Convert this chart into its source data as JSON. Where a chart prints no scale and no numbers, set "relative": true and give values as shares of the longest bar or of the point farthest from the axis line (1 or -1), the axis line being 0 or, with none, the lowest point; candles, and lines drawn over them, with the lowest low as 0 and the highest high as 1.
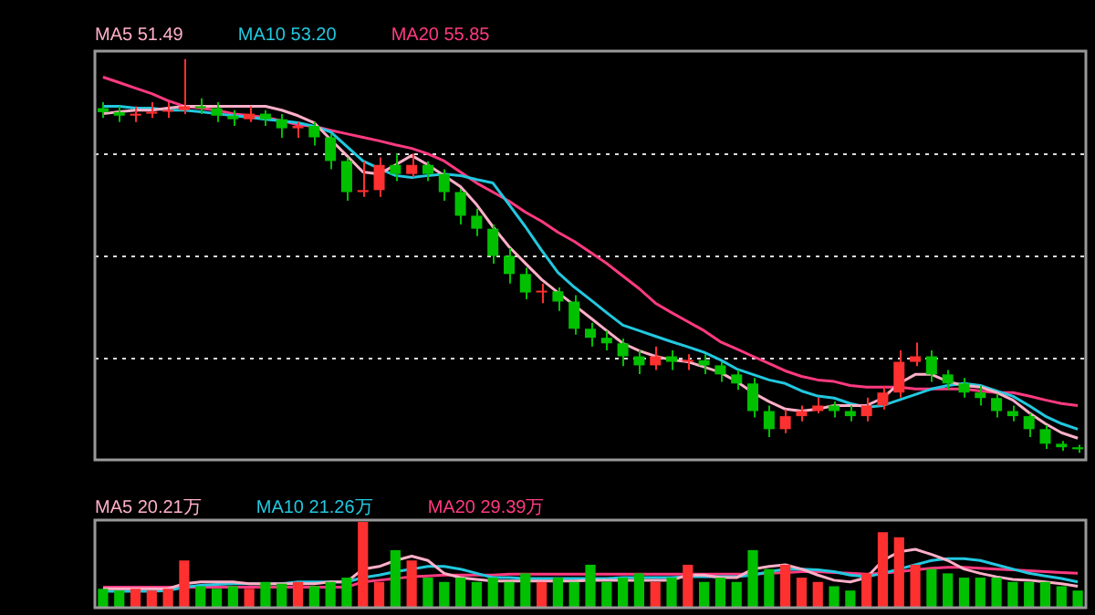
{
  "chart_data": [
    {
      "type": "candlestick",
      "relative": true,
      "grid": "y",
      "legend": "top left",
      "categories": [
        null,
        null,
        null,
        null,
        null,
        null,
        null,
        null,
        null,
        null,
        null,
        null,
        null,
        null,
        null,
        null,
        null,
        null,
        null,
        null,
        null,
        null,
        null,
        null,
        null,
        null,
        null,
        null,
        null,
        null,
        null,
        null,
        null,
        null,
        null,
        null,
        null,
        null,
        null,
        null,
        null,
        null,
        null,
        null,
        null,
        null,
        null,
        null,
        null,
        null,
        null,
        null,
        null,
        null,
        null,
        null,
        null,
        null,
        null,
        null,
        null
      ],
      "ohlc": [
        [
          0.875,
          0.89,
          0.85,
          0.865
        ],
        [
          0.865,
          0.88,
          0.84,
          0.856
        ],
        [
          0.856,
          0.88,
          0.84,
          0.861
        ],
        [
          0.861,
          0.89,
          0.85,
          0.866
        ],
        [
          0.866,
          0.89,
          0.85,
          0.87
        ],
        [
          0.87,
          1.0,
          0.86,
          0.88
        ],
        [
          0.88,
          0.9,
          0.86,
          0.875
        ],
        [
          0.875,
          0.89,
          0.84,
          0.856
        ],
        [
          0.856,
          0.87,
          0.83,
          0.847
        ],
        [
          0.847,
          0.88,
          0.84,
          0.861
        ],
        [
          0.861,
          0.87,
          0.83,
          0.847
        ],
        [
          0.847,
          0.86,
          0.8,
          0.824
        ],
        [
          0.824,
          0.84,
          0.8,
          0.83
        ],
        [
          0.83,
          0.84,
          0.78,
          0.801
        ],
        [
          0.801,
          0.81,
          0.72,
          0.741
        ],
        [
          0.741,
          0.75,
          0.64,
          0.662
        ],
        [
          0.662,
          0.74,
          0.65,
          0.667
        ],
        [
          0.667,
          0.75,
          0.65,
          0.731
        ],
        [
          0.731,
          0.76,
          0.69,
          0.708
        ],
        [
          0.708,
          0.76,
          0.7,
          0.731
        ],
        [
          0.731,
          0.74,
          0.69,
          0.708
        ],
        [
          0.708,
          0.72,
          0.64,
          0.662
        ],
        [
          0.662,
          0.67,
          0.58,
          0.602
        ],
        [
          0.602,
          0.62,
          0.55,
          0.569
        ],
        [
          0.569,
          0.58,
          0.48,
          0.5
        ],
        [
          0.5,
          0.52,
          0.43,
          0.454
        ],
        [
          0.454,
          0.47,
          0.39,
          0.407
        ],
        [
          0.407,
          0.43,
          0.38,
          0.41
        ],
        [
          0.41,
          0.42,
          0.36,
          0.384
        ],
        [
          0.384,
          0.4,
          0.3,
          0.315
        ],
        [
          0.315,
          0.33,
          0.27,
          0.292
        ],
        [
          0.292,
          0.31,
          0.26,
          0.278
        ],
        [
          0.278,
          0.29,
          0.22,
          0.245
        ],
        [
          0.245,
          0.26,
          0.2,
          0.222
        ],
        [
          0.222,
          0.27,
          0.21,
          0.245
        ],
        [
          0.245,
          0.26,
          0.21,
          0.231
        ],
        [
          0.231,
          0.25,
          0.21,
          0.235
        ],
        [
          0.235,
          0.25,
          0.2,
          0.222
        ],
        [
          0.222,
          0.23,
          0.18,
          0.199
        ],
        [
          0.199,
          0.21,
          0.16,
          0.176
        ],
        [
          0.176,
          0.19,
          0.09,
          0.106
        ],
        [
          0.106,
          0.12,
          0.04,
          0.06
        ],
        [
          0.06,
          0.11,
          0.05,
          0.093
        ],
        [
          0.093,
          0.12,
          0.08,
          0.106
        ],
        [
          0.106,
          0.14,
          0.1,
          0.12
        ],
        [
          0.12,
          0.13,
          0.09,
          0.106
        ],
        [
          0.106,
          0.12,
          0.08,
          0.093
        ],
        [
          0.093,
          0.14,
          0.08,
          0.12
        ],
        [
          0.12,
          0.17,
          0.11,
          0.153
        ],
        [
          0.153,
          0.26,
          0.14,
          0.231
        ],
        [
          0.231,
          0.28,
          0.22,
          0.245
        ],
        [
          0.245,
          0.26,
          0.18,
          0.199
        ],
        [
          0.199,
          0.21,
          0.16,
          0.176
        ],
        [
          0.176,
          0.19,
          0.14,
          0.153
        ],
        [
          0.153,
          0.17,
          0.12,
          0.139
        ],
        [
          0.139,
          0.15,
          0.09,
          0.106
        ],
        [
          0.106,
          0.12,
          0.08,
          0.093
        ],
        [
          0.093,
          0.1,
          0.04,
          0.06
        ],
        [
          0.06,
          0.07,
          0.01,
          0.023
        ],
        [
          0.023,
          0.03,
          0.005,
          0.014
        ],
        [
          0.014,
          0.02,
          0,
          0.009
        ]
      ],
      "colors": [
        "#00c000",
        "#00c000",
        "#ff3030",
        "#ff3030",
        "#ff3030",
        "#ff3030",
        "#00c000",
        "#00c000",
        "#00c000",
        "#ff3030",
        "#00c000",
        "#00c000",
        "#ff3030",
        "#00c000",
        "#00c000",
        "#00c000",
        "#ff3030",
        "#ff3030",
        "#00c000",
        "#ff3030",
        "#00c000",
        "#00c000",
        "#00c000",
        "#00c000",
        "#00c000",
        "#00c000",
        "#00c000",
        "#ff3030",
        "#00c000",
        "#00c000",
        "#00c000",
        "#00c000",
        "#00c000",
        "#00c000",
        "#ff3030",
        "#00c000",
        "#ff3030",
        "#00c000",
        "#00c000",
        "#00c000",
        "#00c000",
        "#00c000",
        "#ff3030",
        "#ff3030",
        "#ff3030",
        "#00c000",
        "#00c000",
        "#ff3030",
        "#ff3030",
        "#ff3030",
        "#ff3030",
        "#00c000",
        "#00c000",
        "#00c000",
        "#00c000",
        "#00c000",
        "#00c000",
        "#00c000",
        "#00c000",
        "#00c000",
        "#00c000"
      ],
      "series": [
        {
          "name": "MA5 51.49",
          "type": "line",
          "color": "#ffb0c8",
          "values": [
            0.861,
            0.866,
            0.87,
            0.87,
            0.875,
            0.88,
            0.88,
            0.88,
            0.88,
            0.88,
            0.88,
            0.87,
            0.856,
            0.838,
            0.796,
            0.755,
            0.713,
            0.708,
            0.731,
            0.755,
            0.731,
            0.704,
            0.676,
            0.63,
            0.574,
            0.523,
            0.481,
            0.44,
            0.407,
            0.375,
            0.343,
            0.31,
            0.278,
            0.259,
            0.245,
            0.236,
            0.231,
            0.218,
            0.204,
            0.181,
            0.153,
            0.13,
            0.111,
            0.106,
            0.111,
            0.12,
            0.12,
            0.12,
            0.139,
            0.176,
            0.199,
            0.199,
            0.181,
            0.171,
            0.167,
            0.153,
            0.134,
            0.102,
            0.074,
            0.051,
            0.037
          ]
        },
        {
          "name": "MA10 53.20",
          "type": "line",
          "color": "#22c8e0",
          "values": [
            0.88,
            0.88,
            0.875,
            0.875,
            0.87,
            0.87,
            0.866,
            0.861,
            0.856,
            0.852,
            0.847,
            0.843,
            0.838,
            0.829,
            0.815,
            0.778,
            0.741,
            0.722,
            0.704,
            0.699,
            0.704,
            0.708,
            0.704,
            0.694,
            0.685,
            0.63,
            0.574,
            0.514,
            0.458,
            0.421,
            0.389,
            0.356,
            0.324,
            0.31,
            0.296,
            0.282,
            0.269,
            0.255,
            0.236,
            0.213,
            0.199,
            0.185,
            0.176,
            0.157,
            0.144,
            0.139,
            0.125,
            0.116,
            0.12,
            0.134,
            0.148,
            0.162,
            0.171,
            0.176,
            0.171,
            0.157,
            0.144,
            0.12,
            0.093,
            0.074,
            0.06
          ]
        },
        {
          "name": "MA20 55.85",
          "type": "line",
          "color": "#ff3a80",
          "values": [
            0.954,
            0.94,
            0.926,
            0.912,
            0.894,
            0.88,
            0.875,
            0.87,
            0.861,
            0.856,
            0.852,
            0.843,
            0.833,
            0.829,
            0.819,
            0.81,
            0.801,
            0.792,
            0.782,
            0.773,
            0.759,
            0.741,
            0.713,
            0.685,
            0.662,
            0.639,
            0.611,
            0.588,
            0.56,
            0.537,
            0.509,
            0.481,
            0.449,
            0.417,
            0.38,
            0.356,
            0.333,
            0.31,
            0.282,
            0.264,
            0.245,
            0.227,
            0.208,
            0.194,
            0.185,
            0.181,
            0.171,
            0.167,
            0.167,
            0.167,
            0.162,
            0.162,
            0.162,
            0.162,
            0.157,
            0.153,
            0.153,
            0.144,
            0.134,
            0.125,
            0.12
          ]
        }
      ]
    },
    {
      "type": "bar",
      "relative": true,
      "legend": "top left",
      "categories": [
        null,
        null,
        null,
        null,
        null,
        null,
        null,
        null,
        null,
        null,
        null,
        null,
        null,
        null,
        null,
        null,
        null,
        null,
        null,
        null,
        null,
        null,
        null,
        null,
        null,
        null,
        null,
        null,
        null,
        null,
        null,
        null,
        null,
        null,
        null,
        null,
        null,
        null,
        null,
        null,
        null,
        null,
        null,
        null,
        null,
        null,
        null,
        null,
        null,
        null,
        null,
        null,
        null,
        null,
        null,
        null,
        null,
        null,
        null,
        null,
        null
      ],
      "values": [
        0.22,
        0.2,
        0.22,
        0.2,
        0.22,
        0.55,
        0.25,
        0.22,
        0.25,
        0.22,
        0.3,
        0.28,
        0.3,
        0.25,
        0.3,
        0.35,
        1.0,
        0.3,
        0.67,
        0.55,
        0.35,
        0.3,
        0.35,
        0.3,
        0.35,
        0.3,
        0.4,
        0.3,
        0.35,
        0.3,
        0.5,
        0.3,
        0.35,
        0.4,
        0.3,
        0.35,
        0.5,
        0.3,
        0.35,
        0.3,
        0.67,
        0.45,
        0.5,
        0.35,
        0.3,
        0.25,
        0.2,
        0.4,
        0.88,
        0.82,
        0.5,
        0.45,
        0.4,
        0.35,
        0.35,
        0.35,
        0.3,
        0.3,
        0.3,
        0.25,
        0.2
      ],
      "colors": [
        "#00c000",
        "#00c000",
        "#ff3030",
        "#ff3030",
        "#ff3030",
        "#ff3030",
        "#00c000",
        "#00c000",
        "#00c000",
        "#ff3030",
        "#00c000",
        "#00c000",
        "#ff3030",
        "#00c000",
        "#00c000",
        "#00c000",
        "#ff3030",
        "#ff3030",
        "#00c000",
        "#ff3030",
        "#00c000",
        "#00c000",
        "#00c000",
        "#00c000",
        "#00c000",
        "#00c000",
        "#00c000",
        "#ff3030",
        "#00c000",
        "#00c000",
        "#00c000",
        "#00c000",
        "#00c000",
        "#00c000",
        "#ff3030",
        "#00c000",
        "#ff3030",
        "#00c000",
        "#00c000",
        "#00c000",
        "#00c000",
        "#00c000",
        "#ff3030",
        "#ff3030",
        "#ff3030",
        "#00c000",
        "#00c000",
        "#ff3030",
        "#ff3030",
        "#ff3030",
        "#ff3030",
        "#00c000",
        "#00c000",
        "#00c000",
        "#00c000",
        "#00c000",
        "#00c000",
        "#00c000",
        "#00c000",
        "#00c000",
        "#00c000"
      ],
      "series": [
        {
          "name": "MA5 20.21万",
          "type": "line",
          "color": "#ffb0c8",
          "values": [
            0.22,
            0.22,
            0.22,
            0.22,
            0.22,
            0.28,
            0.3,
            0.3,
            0.3,
            0.28,
            0.28,
            0.28,
            0.28,
            0.28,
            0.3,
            0.3,
            0.45,
            0.48,
            0.55,
            0.6,
            0.55,
            0.4,
            0.35,
            0.33,
            0.31,
            0.31,
            0.31,
            0.31,
            0.31,
            0.31,
            0.32,
            0.32,
            0.32,
            0.32,
            0.32,
            0.32,
            0.38,
            0.38,
            0.35,
            0.35,
            0.45,
            0.48,
            0.5,
            0.45,
            0.38,
            0.32,
            0.3,
            0.35,
            0.55,
            0.65,
            0.68,
            0.62,
            0.55,
            0.45,
            0.4,
            0.36,
            0.33,
            0.32,
            0.3,
            0.28,
            0.25
          ]
        },
        {
          "name": "MA10 21.26万",
          "type": "line",
          "color": "#22c8e0",
          "values": [
            0.19,
            0.19,
            0.19,
            0.19,
            0.2,
            0.24,
            0.26,
            0.27,
            0.28,
            0.28,
            0.28,
            0.28,
            0.3,
            0.3,
            0.3,
            0.3,
            0.35,
            0.38,
            0.42,
            0.45,
            0.48,
            0.48,
            0.45,
            0.4,
            0.35,
            0.35,
            0.34,
            0.34,
            0.34,
            0.34,
            0.34,
            0.34,
            0.35,
            0.35,
            0.35,
            0.35,
            0.36,
            0.36,
            0.36,
            0.36,
            0.38,
            0.42,
            0.45,
            0.45,
            0.44,
            0.42,
            0.38,
            0.36,
            0.4,
            0.45,
            0.5,
            0.55,
            0.57,
            0.57,
            0.55,
            0.5,
            0.45,
            0.4,
            0.37,
            0.34,
            0.3
          ]
        },
        {
          "name": "MA20 29.39万",
          "type": "line",
          "color": "#ff3a80",
          "values": [
            0.24,
            0.24,
            0.24,
            0.24,
            0.24,
            0.24,
            0.24,
            0.24,
            0.24,
            0.24,
            0.24,
            0.24,
            0.24,
            0.24,
            0.24,
            0.24,
            0.3,
            0.32,
            0.34,
            0.36,
            0.37,
            0.38,
            0.38,
            0.38,
            0.38,
            0.39,
            0.39,
            0.39,
            0.39,
            0.39,
            0.39,
            0.39,
            0.39,
            0.39,
            0.39,
            0.39,
            0.39,
            0.39,
            0.39,
            0.39,
            0.39,
            0.4,
            0.41,
            0.42,
            0.42,
            0.41,
            0.4,
            0.39,
            0.4,
            0.42,
            0.44,
            0.46,
            0.47,
            0.47,
            0.46,
            0.45,
            0.44,
            0.43,
            0.42,
            0.41,
            0.4
          ]
        }
      ]
    }
  ]
}
